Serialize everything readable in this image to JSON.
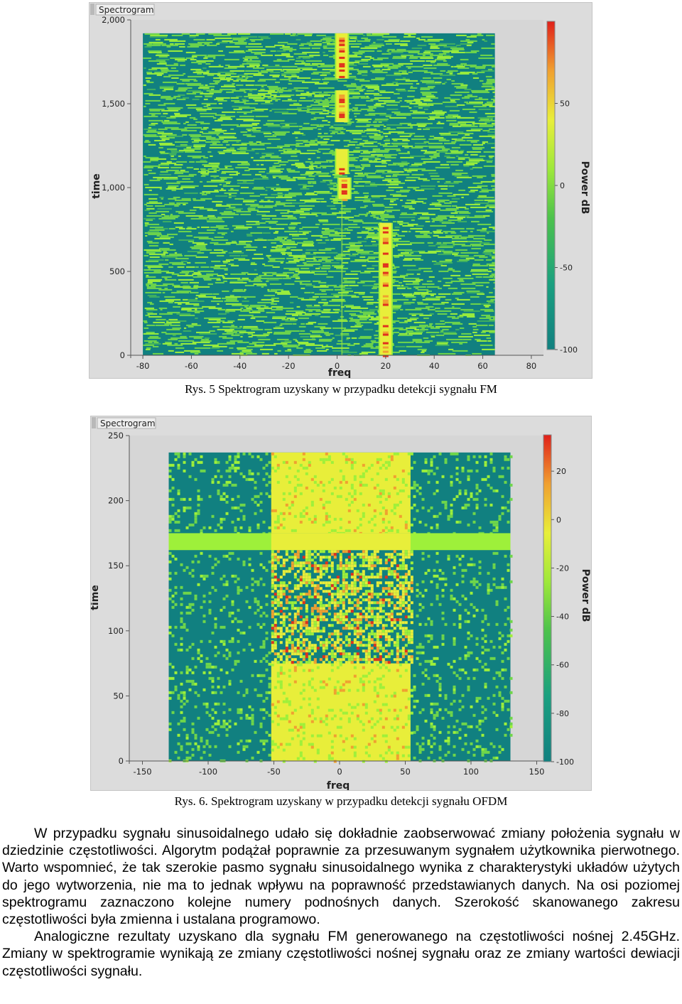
{
  "figures": [
    {
      "id": "fm",
      "title": "Spectrogram",
      "caption": "Rys. 5 Spektrogram uzyskany w przypadku detekcji sygnału FM",
      "chart_data": {
        "type": "heatmap",
        "title": "Spectrogram",
        "xlabel": "freq",
        "ylabel": "time",
        "xlim": [
          -85,
          85
        ],
        "ylim": [
          0,
          2000
        ],
        "xticks": [
          "-80",
          "-60",
          "-40",
          "-20",
          "0",
          "20",
          "40",
          "60",
          "80"
        ],
        "xtick_values": [
          -80,
          -60,
          -40,
          -20,
          0,
          20,
          40,
          60,
          80
        ],
        "yticks": [
          "0",
          "500",
          "1,000",
          "1,500",
          "2,000"
        ],
        "ytick_values": [
          0,
          500,
          1000,
          1500,
          2000
        ],
        "data_xrange": [
          -80,
          65
        ],
        "data_yrange": [
          0,
          1920
        ],
        "colorbar": {
          "label": "Power dB",
          "ticks": [
            "-100",
            "-50",
            "0",
            "50"
          ],
          "tick_values": [
            -100,
            -50,
            0,
            50
          ],
          "range": [
            -100,
            100
          ]
        },
        "signal_track": [
          {
            "freq": 2,
            "time_start": 1650,
            "time_end": 1920
          },
          {
            "freq": 2,
            "time_start": 1390,
            "time_end": 1580
          },
          {
            "freq": 2,
            "time_start": 1080,
            "time_end": 1230
          },
          {
            "freq": 3,
            "time_start": 930,
            "time_end": 1060
          },
          {
            "freq": 20,
            "time_start": 0,
            "time_end": 790
          }
        ]
      }
    },
    {
      "id": "ofdm",
      "title": "Spectrogram",
      "caption": "Rys. 6. Spektrogram uzyskany w przypadku detekcji sygnału OFDM",
      "chart_data": {
        "type": "heatmap",
        "title": "Spectrogram",
        "xlabel": "freq",
        "ylabel": "time",
        "xlim": [
          -160,
          160
        ],
        "ylim": [
          0,
          250
        ],
        "xticks": [
          "-150",
          "-100",
          "-50",
          "0",
          "50",
          "100",
          "150"
        ],
        "xtick_values": [
          -150,
          -100,
          -50,
          0,
          50,
          100,
          150
        ],
        "yticks": [
          "0",
          "50",
          "100",
          "150",
          "200",
          "250"
        ],
        "ytick_values": [
          0,
          50,
          100,
          150,
          200,
          250
        ],
        "data_xrange": [
          -130,
          130
        ],
        "data_yrange": [
          0,
          237
        ],
        "colorbar": {
          "label": "Power dB",
          "ticks": [
            "-100",
            "-80",
            "-60",
            "-40",
            "-20",
            "0",
            "20"
          ],
          "tick_values": [
            -100,
            -80,
            -60,
            -40,
            -20,
            0,
            20
          ],
          "range": [
            -100,
            35
          ]
        },
        "band": {
          "freq_start": -52,
          "freq_end": 54
        },
        "horizontal_band": {
          "time_start": 162,
          "time_end": 175
        },
        "burst_region": {
          "time_start": 75,
          "time_end": 162
        }
      }
    }
  ],
  "text": {
    "p1": "W przypadku sygnału sinusoidalnego udało się dokładnie zaobserwować zmiany położenia sygnału w dziedzinie częstotliwości. Algorytm podążał poprawnie za przesuwanym sygnałem użytkownika pierwotnego. Warto wspomnieć, że tak szerokie pasmo sygnału sinusoidalnego wynika z charakterystyki układów użytych do jego wytworzenia, nie ma to jednak wpływu na poprawność przedstawianych danych. Na osi poziomej spektrogramu zaznaczono kolejne numery podnośnych danych. Szerokość skanowanego zakresu częstotliwości była zmienna i ustalana programowo.",
    "p2": "Analogiczne rezultaty uzyskano dla sygnału FM generowanego na częstotliwości nośnej 2.45GHz. Zmiany w spektrogramie wynikają ze zmiany częstotliwości nośnej sygnału oraz ze zmiany wartości dewiacji częstotliwości sygnału."
  },
  "colors": {
    "background_low": "#118080",
    "noise_green": "#6fd64a",
    "bright_green": "#9ef03a",
    "yellow": "#e8ee3a",
    "orange": "#f0a030",
    "red": "#e0301e",
    "panel": "#dcdcdc"
  }
}
